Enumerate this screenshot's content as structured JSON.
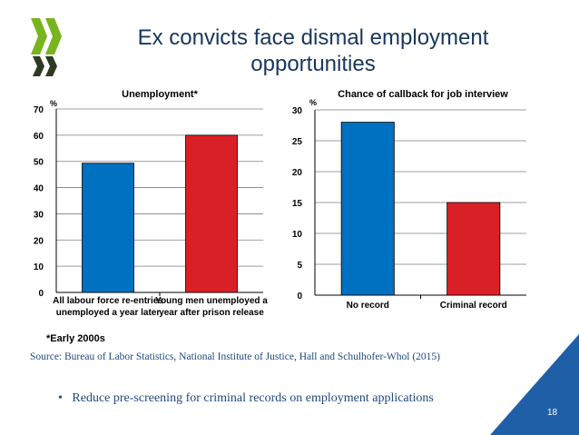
{
  "slide": {
    "title": "Ex convicts face dismal employment opportunities",
    "footnote": "*Early 2000s",
    "source": "Source: Bureau of Labor Statistics, National Institute of Justice, Hall and Schulhofer-Whol (2015)",
    "bullet": "Reduce pre-screening for criminal records on employment applications",
    "page_number": "18"
  },
  "colors": {
    "title": "#17375e",
    "blue_bar": "#0070c0",
    "red_bar": "#d92027",
    "logo_green": "#78b41e",
    "logo_dark": "#2d3a22",
    "corner": "#1f5fa8",
    "source_text": "#1f497d"
  },
  "chart_data": [
    {
      "type": "bar",
      "title": "Unemployment*",
      "ylabel": "%",
      "ylim": [
        0,
        70
      ],
      "yticks": [
        0,
        10,
        20,
        30,
        40,
        50,
        60,
        70
      ],
      "categories": [
        [
          "All labour force re-entries",
          "unemployed a year later"
        ],
        [
          "Young men unemployed a",
          "year after prison release"
        ]
      ],
      "values": [
        49.3,
        60
      ],
      "grid": true
    },
    {
      "type": "bar",
      "title": "Chance of callback for job interview",
      "ylabel": "%",
      "ylim": [
        0,
        30
      ],
      "yticks": [
        0,
        5,
        10,
        15,
        20,
        25,
        30
      ],
      "categories": [
        [
          "No record"
        ],
        [
          "Criminal record"
        ]
      ],
      "values": [
        28,
        15
      ],
      "grid": true
    }
  ]
}
